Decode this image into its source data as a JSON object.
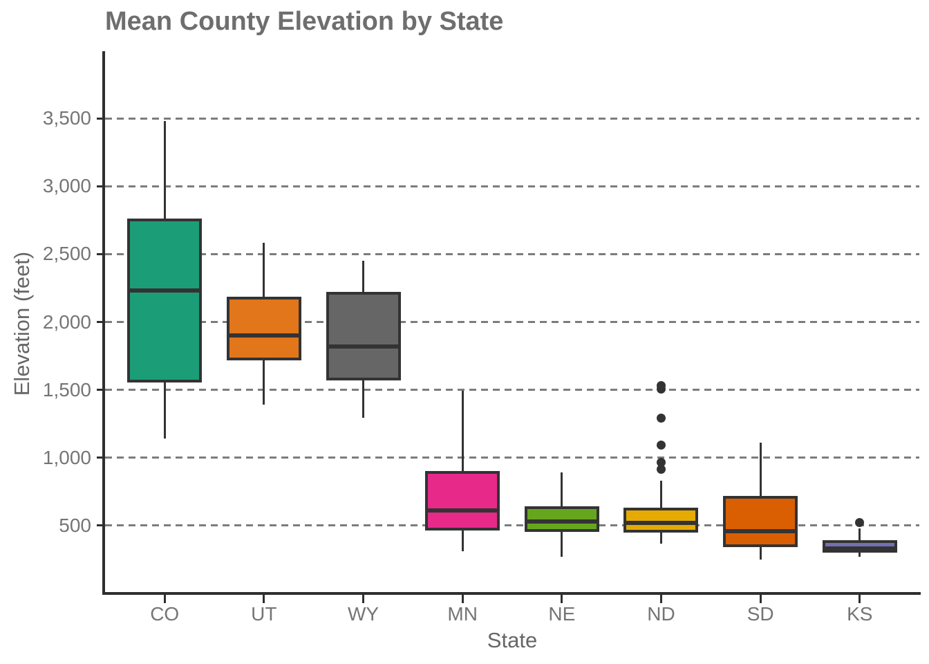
{
  "title": "Mean County Elevation by State",
  "colors": {
    "axis_line": "#2e2e2e",
    "box_stroke": "#333333",
    "gridline": "#7c7c7c",
    "title_text": "#6e6e6e",
    "axis_title_text": "#666666",
    "tick_label_text": "#757575",
    "background": "#ffffff"
  },
  "chart_data": {
    "type": "boxplot",
    "title": "Mean County Elevation by State",
    "xlabel": "State",
    "ylabel": "Elevation (feet)",
    "categories": [
      "CO",
      "UT",
      "WY",
      "MN",
      "NE",
      "ND",
      "SD",
      "KS"
    ],
    "ylim": [
      0,
      3990
    ],
    "yticks": [
      500,
      1000,
      1500,
      2000,
      2500,
      3000,
      3500
    ],
    "ytick_labels": [
      "500",
      "1,000",
      "1,500",
      "2,000",
      "2,500",
      "3,000",
      "3,500"
    ],
    "grid": "horizontal dashed major gridlines, no top/right border",
    "legend": "none",
    "series": [
      {
        "name": "CO",
        "color": "#1B9E77",
        "whisker_low": 1140,
        "q1": 1555,
        "median": 2230,
        "q3": 2760,
        "whisker_high": 3480,
        "outliers": []
      },
      {
        "name": "UT",
        "color": "#E2761B",
        "whisker_low": 1390,
        "q1": 1715,
        "median": 1900,
        "q3": 2185,
        "whisker_high": 2585,
        "outliers": []
      },
      {
        "name": "WY",
        "color": "#666666",
        "whisker_low": 1295,
        "q1": 1570,
        "median": 1820,
        "q3": 2220,
        "whisker_high": 2450,
        "outliers": []
      },
      {
        "name": "MN",
        "color": "#E7298A",
        "whisker_low": 310,
        "q1": 465,
        "median": 610,
        "q3": 900,
        "whisker_high": 1495,
        "outliers": []
      },
      {
        "name": "NE",
        "color": "#66A61E",
        "whisker_low": 270,
        "q1": 455,
        "median": 530,
        "q3": 640,
        "whisker_high": 890,
        "outliers": []
      },
      {
        "name": "ND",
        "color": "#E6AB02",
        "whisker_low": 365,
        "q1": 450,
        "median": 520,
        "q3": 630,
        "whisker_high": 830,
        "outliers": [
          915,
          965,
          1095,
          1290,
          1505,
          1530
        ]
      },
      {
        "name": "SD",
        "color": "#D95F02",
        "whisker_low": 250,
        "q1": 340,
        "median": 460,
        "q3": 720,
        "whisker_high": 1110,
        "outliers": []
      },
      {
        "name": "KS",
        "color": "#7570B3",
        "whisker_low": 270,
        "q1": 300,
        "median": 330,
        "q3": 390,
        "whisker_high": 480,
        "outliers": [
          520
        ]
      }
    ]
  }
}
